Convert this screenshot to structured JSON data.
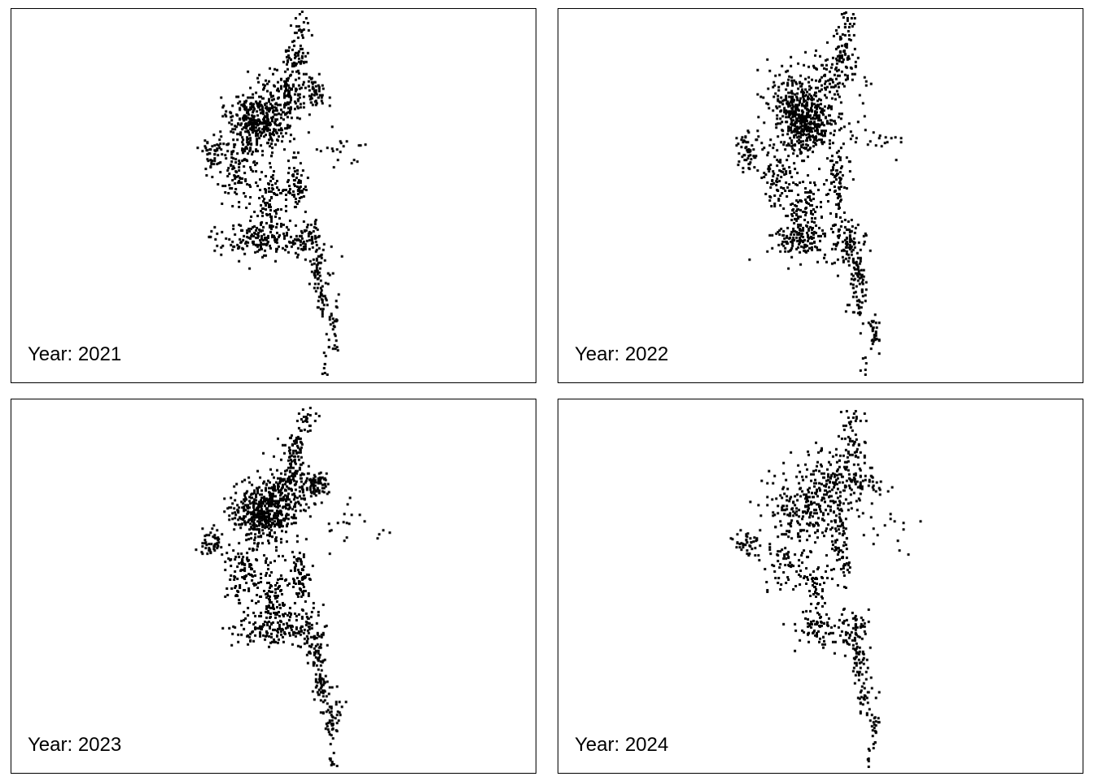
{
  "chart_data": {
    "type": "scatter",
    "description_free": true,
    "panels": [
      {
        "label": "Year: 2021",
        "clusters": [
          {
            "x": 0.47,
            "y": 0.3,
            "sx": 0.03,
            "sy": 0.04,
            "n": 420
          },
          {
            "x": 0.53,
            "y": 0.22,
            "sx": 0.025,
            "sy": 0.03,
            "n": 120
          },
          {
            "x": 0.58,
            "y": 0.22,
            "sx": 0.01,
            "sy": 0.02,
            "n": 40
          },
          {
            "x": 0.54,
            "y": 0.13,
            "sx": 0.012,
            "sy": 0.02,
            "n": 55
          },
          {
            "x": 0.55,
            "y": 0.05,
            "sx": 0.01,
            "sy": 0.03,
            "n": 25
          },
          {
            "x": 0.38,
            "y": 0.38,
            "sx": 0.012,
            "sy": 0.02,
            "n": 45
          },
          {
            "x": 0.43,
            "y": 0.44,
            "sx": 0.02,
            "sy": 0.04,
            "n": 100
          },
          {
            "x": 0.49,
            "y": 0.52,
            "sx": 0.012,
            "sy": 0.05,
            "n": 90
          },
          {
            "x": 0.54,
            "y": 0.47,
            "sx": 0.01,
            "sy": 0.04,
            "n": 70
          },
          {
            "x": 0.47,
            "y": 0.61,
            "sx": 0.04,
            "sy": 0.022,
            "n": 150
          },
          {
            "x": 0.56,
            "y": 0.61,
            "sx": 0.02,
            "sy": 0.03,
            "n": 80
          },
          {
            "x": 0.58,
            "y": 0.69,
            "sx": 0.008,
            "sy": 0.03,
            "n": 40
          },
          {
            "x": 0.59,
            "y": 0.76,
            "sx": 0.008,
            "sy": 0.03,
            "n": 35
          },
          {
            "x": 0.61,
            "y": 0.85,
            "sx": 0.006,
            "sy": 0.04,
            "n": 30
          },
          {
            "x": 0.6,
            "y": 0.96,
            "sx": 0.004,
            "sy": 0.02,
            "n": 8
          },
          {
            "x": 0.62,
            "y": 0.37,
            "sx": 0.03,
            "sy": 0.03,
            "n": 20
          }
        ]
      },
      {
        "label": "Year: 2022",
        "clusters": [
          {
            "x": 0.47,
            "y": 0.3,
            "sx": 0.03,
            "sy": 0.04,
            "n": 450
          },
          {
            "x": 0.45,
            "y": 0.22,
            "sx": 0.03,
            "sy": 0.04,
            "n": 120
          },
          {
            "x": 0.52,
            "y": 0.18,
            "sx": 0.025,
            "sy": 0.03,
            "n": 90
          },
          {
            "x": 0.54,
            "y": 0.1,
            "sx": 0.012,
            "sy": 0.03,
            "n": 55
          },
          {
            "x": 0.55,
            "y": 0.04,
            "sx": 0.01,
            "sy": 0.02,
            "n": 20
          },
          {
            "x": 0.36,
            "y": 0.38,
            "sx": 0.012,
            "sy": 0.025,
            "n": 60
          },
          {
            "x": 0.42,
            "y": 0.45,
            "sx": 0.02,
            "sy": 0.04,
            "n": 90
          },
          {
            "x": 0.47,
            "y": 0.55,
            "sx": 0.015,
            "sy": 0.06,
            "n": 110
          },
          {
            "x": 0.53,
            "y": 0.46,
            "sx": 0.01,
            "sy": 0.05,
            "n": 80
          },
          {
            "x": 0.46,
            "y": 0.61,
            "sx": 0.03,
            "sy": 0.025,
            "n": 120
          },
          {
            "x": 0.55,
            "y": 0.62,
            "sx": 0.015,
            "sy": 0.03,
            "n": 90
          },
          {
            "x": 0.57,
            "y": 0.7,
            "sx": 0.008,
            "sy": 0.03,
            "n": 45
          },
          {
            "x": 0.57,
            "y": 0.78,
            "sx": 0.008,
            "sy": 0.03,
            "n": 35
          },
          {
            "x": 0.6,
            "y": 0.86,
            "sx": 0.006,
            "sy": 0.03,
            "n": 30
          },
          {
            "x": 0.58,
            "y": 0.95,
            "sx": 0.004,
            "sy": 0.02,
            "n": 6
          },
          {
            "x": 0.6,
            "y": 0.34,
            "sx": 0.03,
            "sy": 0.03,
            "n": 20
          }
        ]
      },
      {
        "label": "Year: 2023",
        "clusters": [
          {
            "x": 0.48,
            "y": 0.3,
            "sx": 0.03,
            "sy": 0.04,
            "n": 480
          },
          {
            "x": 0.53,
            "y": 0.22,
            "sx": 0.025,
            "sy": 0.03,
            "n": 140
          },
          {
            "x": 0.58,
            "y": 0.23,
            "sx": 0.01,
            "sy": 0.02,
            "n": 60
          },
          {
            "x": 0.54,
            "y": 0.13,
            "sx": 0.012,
            "sy": 0.02,
            "n": 60
          },
          {
            "x": 0.56,
            "y": 0.05,
            "sx": 0.01,
            "sy": 0.03,
            "n": 25
          },
          {
            "x": 0.38,
            "y": 0.38,
            "sx": 0.012,
            "sy": 0.02,
            "n": 50
          },
          {
            "x": 0.44,
            "y": 0.46,
            "sx": 0.02,
            "sy": 0.04,
            "n": 110
          },
          {
            "x": 0.5,
            "y": 0.53,
            "sx": 0.012,
            "sy": 0.05,
            "n": 100
          },
          {
            "x": 0.55,
            "y": 0.47,
            "sx": 0.01,
            "sy": 0.04,
            "n": 80
          },
          {
            "x": 0.48,
            "y": 0.61,
            "sx": 0.035,
            "sy": 0.022,
            "n": 110
          },
          {
            "x": 0.56,
            "y": 0.61,
            "sx": 0.02,
            "sy": 0.03,
            "n": 80
          },
          {
            "x": 0.58,
            "y": 0.69,
            "sx": 0.008,
            "sy": 0.03,
            "n": 45
          },
          {
            "x": 0.59,
            "y": 0.77,
            "sx": 0.008,
            "sy": 0.03,
            "n": 45
          },
          {
            "x": 0.61,
            "y": 0.85,
            "sx": 0.008,
            "sy": 0.03,
            "n": 50
          },
          {
            "x": 0.61,
            "y": 0.96,
            "sx": 0.004,
            "sy": 0.02,
            "n": 10
          },
          {
            "x": 0.63,
            "y": 0.33,
            "sx": 0.03,
            "sy": 0.03,
            "n": 20
          }
        ]
      },
      {
        "label": "Year: 2024",
        "clusters": [
          {
            "x": 0.48,
            "y": 0.3,
            "sx": 0.04,
            "sy": 0.05,
            "n": 260
          },
          {
            "x": 0.52,
            "y": 0.2,
            "sx": 0.03,
            "sy": 0.04,
            "n": 110
          },
          {
            "x": 0.58,
            "y": 0.22,
            "sx": 0.02,
            "sy": 0.02,
            "n": 50
          },
          {
            "x": 0.56,
            "y": 0.12,
            "sx": 0.015,
            "sy": 0.03,
            "n": 40
          },
          {
            "x": 0.56,
            "y": 0.04,
            "sx": 0.01,
            "sy": 0.02,
            "n": 15
          },
          {
            "x": 0.36,
            "y": 0.38,
            "sx": 0.012,
            "sy": 0.02,
            "n": 45
          },
          {
            "x": 0.43,
            "y": 0.45,
            "sx": 0.02,
            "sy": 0.04,
            "n": 60
          },
          {
            "x": 0.49,
            "y": 0.52,
            "sx": 0.012,
            "sy": 0.05,
            "n": 70
          },
          {
            "x": 0.54,
            "y": 0.4,
            "sx": 0.01,
            "sy": 0.04,
            "n": 55
          },
          {
            "x": 0.49,
            "y": 0.62,
            "sx": 0.03,
            "sy": 0.02,
            "n": 55
          },
          {
            "x": 0.56,
            "y": 0.61,
            "sx": 0.015,
            "sy": 0.03,
            "n": 60
          },
          {
            "x": 0.57,
            "y": 0.7,
            "sx": 0.008,
            "sy": 0.03,
            "n": 40
          },
          {
            "x": 0.58,
            "y": 0.78,
            "sx": 0.008,
            "sy": 0.03,
            "n": 30
          },
          {
            "x": 0.6,
            "y": 0.86,
            "sx": 0.006,
            "sy": 0.03,
            "n": 25
          },
          {
            "x": 0.59,
            "y": 0.96,
            "sx": 0.004,
            "sy": 0.02,
            "n": 6
          },
          {
            "x": 0.63,
            "y": 0.35,
            "sx": 0.03,
            "sy": 0.04,
            "n": 15
          }
        ]
      }
    ]
  },
  "colors": {
    "points": "#000000",
    "frame": "#000000",
    "background": "#ffffff"
  }
}
